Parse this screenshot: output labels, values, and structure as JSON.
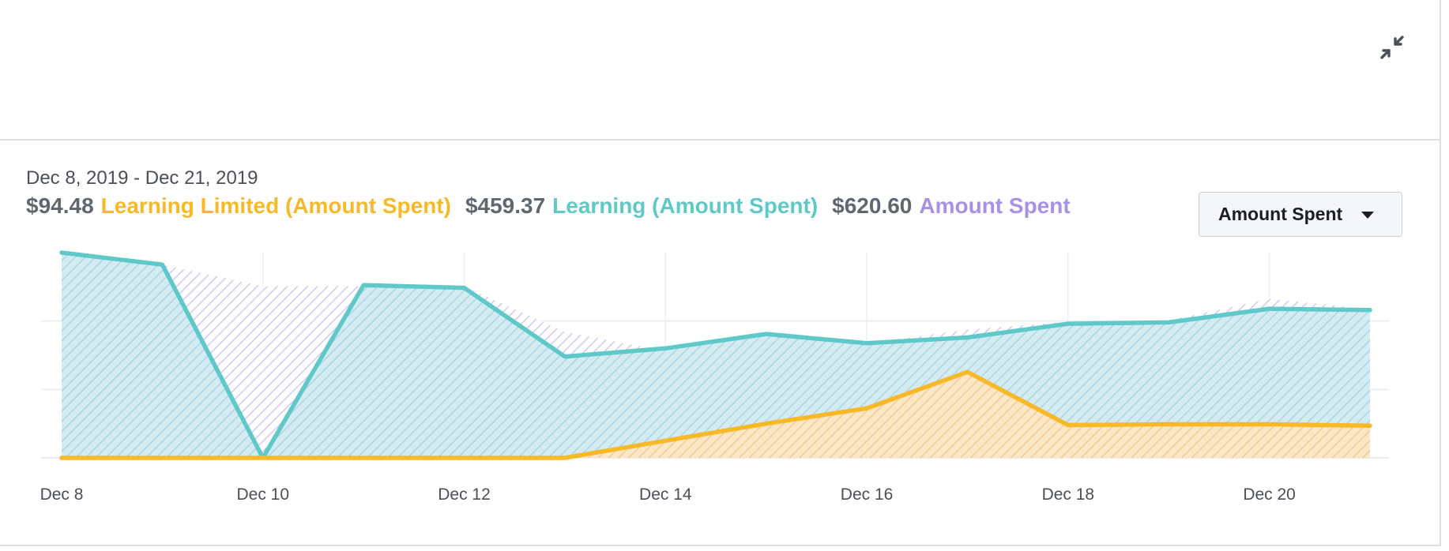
{
  "header": {
    "collapse_icon": "collapse-arrows-icon"
  },
  "summary": {
    "date_range": "Dec 8, 2019 - Dec 21, 2019",
    "legend": [
      {
        "value": "$94.48",
        "label": "Learning Limited (Amount Spent)",
        "color": "#f7b928"
      },
      {
        "value": "$459.37",
        "label": "Learning (Amount Spent)",
        "color": "#5fc9c9"
      },
      {
        "value": "$620.60",
        "label": "Amount Spent",
        "color": "#a890e8"
      }
    ]
  },
  "metric_dropdown": {
    "selected": "Amount Spent",
    "icon": "caret-down-icon"
  },
  "chart_data": {
    "type": "area",
    "x": [
      "Dec 8",
      "Dec 9",
      "Dec 10",
      "Dec 11",
      "Dec 12",
      "Dec 13",
      "Dec 14",
      "Dec 15",
      "Dec 16",
      "Dec 17",
      "Dec 18",
      "Dec 19",
      "Dec 20",
      "Dec 21"
    ],
    "x_tick_labels": [
      "Dec 8",
      "Dec 10",
      "Dec 12",
      "Dec 14",
      "Dec 16",
      "Dec 18",
      "Dec 20"
    ],
    "ylim": [
      0,
      60
    ],
    "y_gridlines": [
      20,
      40
    ],
    "grid": true,
    "series": [
      {
        "name": "Amount Spent",
        "role": "hatched-area",
        "color": "#a890e8",
        "values": [
          60,
          56.5,
          50.2,
          50.2,
          50.2,
          36.8,
          31.2,
          36.2,
          33.5,
          37.5,
          39.8,
          40.2,
          46.5,
          43.5
        ]
      },
      {
        "name": "Learning (Amount Spent)",
        "role": "line-area",
        "color": "#5fc9c9",
        "values": [
          60,
          56.5,
          0,
          50.5,
          49.7,
          29.6,
          32,
          36.2,
          33.5,
          35.2,
          39.2,
          39.6,
          43.6,
          43.2
        ]
      },
      {
        "name": "Learning Limited (Amount Spent)",
        "role": "line-area",
        "color": "#f7b928",
        "values": [
          0,
          0,
          0,
          0,
          0,
          0,
          5,
          10,
          14.5,
          25.1,
          9.6,
          9.8,
          9.8,
          9.4
        ]
      }
    ]
  }
}
